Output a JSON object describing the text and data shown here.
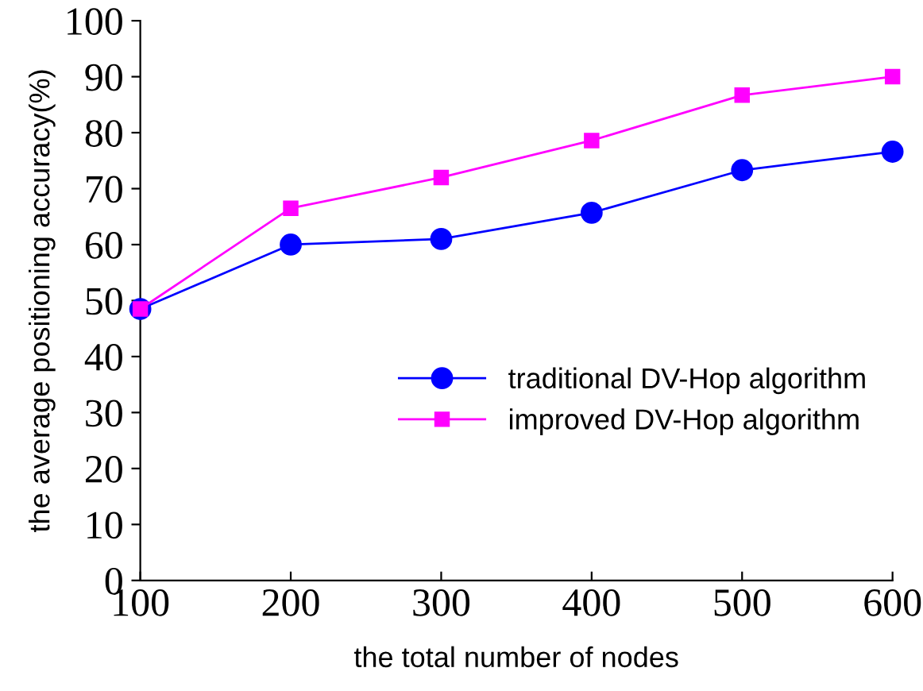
{
  "chart_data": {
    "type": "line",
    "xlabel": "the total number of nodes",
    "ylabel": "the average positioning accuracy(%)",
    "x": [
      100,
      200,
      300,
      400,
      500,
      600
    ],
    "series": [
      {
        "name": "traditional DV-Hop algorithm",
        "color": "#0000ff",
        "marker": "circle",
        "values": [
          48.5,
          60,
          61,
          65.7,
          73.3,
          76.6
        ]
      },
      {
        "name": "improved DV-Hop algorithm",
        "color": "#ff00ff",
        "marker": "square",
        "values": [
          48.5,
          66.5,
          72,
          78.6,
          86.7,
          90
        ]
      }
    ],
    "xlim": [
      100,
      600
    ],
    "xticks": [
      100,
      200,
      300,
      400,
      500,
      600
    ],
    "ylim": [
      0,
      100
    ],
    "yticks": [
      0,
      10,
      20,
      30,
      40,
      50,
      60,
      70,
      80,
      90,
      100
    ],
    "grid": false,
    "legend": "right",
    "line_style": "solid"
  }
}
